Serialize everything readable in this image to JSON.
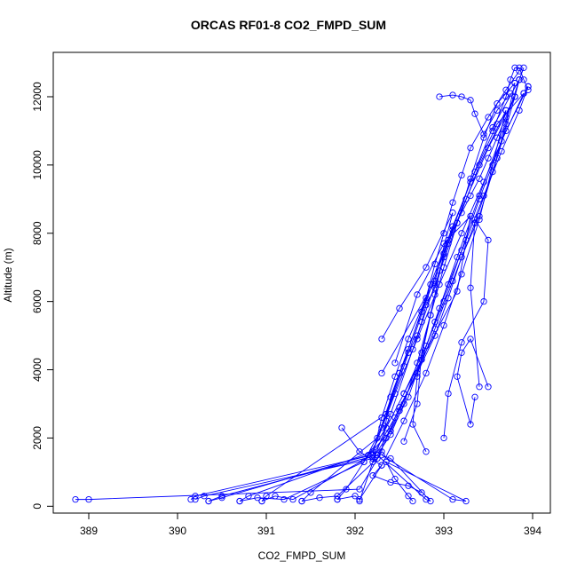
{
  "chart_data": {
    "type": "line",
    "title": "ORCAS RF01-8 CO2_FMPD_SUM",
    "xlabel": "CO2_FMPD_SUM",
    "ylabel": "Altitude (m)",
    "xlim": [
      388.6,
      394.2
    ],
    "ylim": [
      -200,
      13300
    ],
    "xticks": [
      389,
      390,
      391,
      392,
      393,
      394
    ],
    "yticks": [
      0,
      2000,
      4000,
      6000,
      8000,
      10000,
      12000
    ],
    "grid": false,
    "marker": "open-circle",
    "color": "#0000ff",
    "series": [
      {
        "x": [
          388.85,
          389.0,
          392.05,
          392.3,
          392.35,
          392.4,
          392.5,
          392.6,
          392.7,
          392.75,
          392.8,
          392.9,
          392.95,
          393.0,
          393.05,
          393.1,
          393.2,
          393.3,
          393.4,
          393.5,
          393.6,
          393.7,
          393.8,
          393.85,
          393.9
        ],
        "y": [
          200,
          200,
          500,
          1600,
          2500,
          3200,
          3900,
          4500,
          5000,
          5400,
          5900,
          6400,
          6900,
          7300,
          7700,
          8100,
          8600,
          9100,
          9600,
          10200,
          10800,
          11400,
          12000,
          12500,
          12850
        ]
      },
      {
        "x": [
          393.85,
          393.7,
          393.5,
          393.3,
          393.2,
          393.1,
          393.0,
          392.9,
          392.8,
          392.6,
          392.45,
          392.3,
          392.2,
          390.2,
          390.15
        ],
        "y": [
          12750,
          12200,
          11400,
          10500,
          9700,
          8900,
          8000,
          7100,
          6100,
          4900,
          3800,
          2600,
          1500,
          300,
          200
        ]
      },
      {
        "x": [
          390.2,
          390.3,
          392.2,
          392.35,
          392.5,
          392.7,
          392.9,
          393.05,
          393.2,
          393.4,
          393.55,
          393.7,
          393.8
        ],
        "y": [
          200,
          300,
          1400,
          2000,
          2900,
          3900,
          5000,
          6100,
          7300,
          8500,
          9800,
          11200,
          12400
        ]
      },
      {
        "x": [
          393.8,
          393.6,
          393.45,
          393.3,
          393.15,
          393.0,
          392.85,
          392.7,
          392.55,
          392.4,
          392.25,
          390.5,
          390.35
        ],
        "y": [
          12400,
          11800,
          10800,
          9600,
          8300,
          7000,
          5600,
          4200,
          3000,
          2100,
          1500,
          300,
          150
        ]
      },
      {
        "x": [
          390.35,
          390.5,
          392.15,
          392.4,
          392.6,
          392.75,
          392.9,
          393.05,
          393.25,
          393.45,
          393.65,
          393.85,
          393.95
        ],
        "y": [
          150,
          250,
          1500,
          2200,
          3200,
          4300,
          5400,
          6500,
          7800,
          9100,
          10400,
          11600,
          12300
        ]
      },
      {
        "x": [
          393.95,
          393.7,
          393.45,
          393.2,
          392.95,
          392.7,
          392.45,
          392.2,
          390.8,
          390.7
        ],
        "y": [
          12300,
          11000,
          9500,
          8000,
          6500,
          4900,
          3300,
          1600,
          300,
          150
        ]
      },
      {
        "x": [
          390.7,
          390.9,
          391.2,
          392.1,
          392.35,
          392.55,
          392.8,
          393.0,
          393.2,
          393.4,
          393.65,
          393.9
        ],
        "y": [
          150,
          250,
          200,
          1300,
          2300,
          3300,
          4700,
          6000,
          7500,
          9000,
          10700,
          12100
        ]
      },
      {
        "x": [
          393.9,
          393.6,
          393.35,
          393.1,
          392.85,
          392.6,
          392.35,
          391.0,
          390.95
        ],
        "y": [
          12100,
          11200,
          9800,
          8200,
          6500,
          4600,
          2700,
          300,
          150
        ]
      },
      {
        "x": [
          390.95,
          391.1,
          391.3,
          392.2,
          392.45,
          392.7,
          392.9,
          393.1,
          393.35,
          393.6,
          393.8
        ],
        "y": [
          150,
          300,
          200,
          1500,
          2600,
          3900,
          5200,
          6600,
          8300,
          10200,
          12000
        ]
      },
      {
        "x": [
          393.8,
          393.5,
          393.25,
          393.0,
          392.75,
          392.5,
          392.25,
          391.5,
          391.4
        ],
        "y": [
          12000,
          10500,
          9000,
          7400,
          5700,
          3900,
          2000,
          400,
          150
        ]
      },
      {
        "x": [
          391.4,
          391.6,
          391.8,
          392.25,
          392.5,
          392.75,
          392.95,
          393.15,
          393.4,
          393.65,
          393.85
        ],
        "y": [
          150,
          250,
          300,
          1400,
          2800,
          4300,
          5800,
          7300,
          9100,
          10900,
          12500
        ]
      },
      {
        "x": [
          393.85,
          393.55,
          393.3,
          393.05,
          392.8,
          392.55,
          392.3,
          392.1,
          391.9,
          391.8
        ],
        "y": [
          12500,
          11100,
          9500,
          7800,
          6000,
          4100,
          2300,
          1300,
          500,
          200
        ]
      },
      {
        "x": [
          391.8,
          392.0,
          392.05,
          392.3,
          392.55,
          392.8,
          393.0,
          393.2,
          393.4,
          393.55,
          393.7
        ],
        "y": [
          200,
          300,
          200,
          1200,
          2500,
          3900,
          5300,
          6800,
          8400,
          10000,
          11600
        ]
      },
      {
        "x": [
          393.7,
          393.4,
          393.15,
          392.9,
          392.65,
          392.4,
          392.2,
          392.05
        ],
        "y": [
          11600,
          10000,
          8300,
          6500,
          4600,
          2700,
          1300,
          150
        ]
      },
      {
        "x": [
          392.25,
          392.8,
          392.85,
          392.4,
          392.3,
          393.1,
          393.25,
          392.35,
          392.45,
          392.6,
          392.65
        ],
        "y": [
          1500,
          200,
          150,
          1400,
          1500,
          200,
          150,
          1300,
          800,
          300,
          150
        ]
      },
      {
        "x": [
          392.55,
          392.7,
          392.75,
          392.9,
          393.0,
          392.85,
          392.7,
          392.65,
          392.8
        ],
        "y": [
          1900,
          3000,
          4500,
          6200,
          7400,
          5600,
          3800,
          2400,
          1600
        ]
      },
      {
        "x": [
          393.0,
          393.05,
          393.2,
          393.45,
          393.5,
          393.35,
          393.3,
          393.4
        ],
        "y": [
          2000,
          3300,
          4800,
          6000,
          7800,
          8400,
          6400,
          3500
        ]
      },
      {
        "x": [
          393.35,
          393.3,
          393.15,
          393.2,
          393.3,
          393.5
        ],
        "y": [
          3200,
          2400,
          3800,
          4500,
          4900,
          3500
        ]
      },
      {
        "x": [
          392.3,
          392.9,
          393.1,
          392.8,
          392.5,
          392.3
        ],
        "y": [
          3900,
          6600,
          8600,
          7000,
          5800,
          4900
        ]
      },
      {
        "x": [
          392.55,
          393.15,
          393.3,
          393.0,
          392.7,
          392.45
        ],
        "y": [
          3300,
          6300,
          8500,
          7700,
          6200,
          4200
        ]
      },
      {
        "x": [
          392.95,
          393.1,
          393.2,
          393.3,
          393.35,
          393.45,
          393.6,
          393.75
        ],
        "y": [
          12000,
          12050,
          12000,
          11900,
          11500,
          10900,
          11600,
          12100
        ]
      },
      {
        "x": [
          393.55,
          393.7,
          393.75,
          393.8,
          393.85,
          393.9,
          393.95
        ],
        "y": [
          11000,
          12000,
          12500,
          12850,
          12850,
          12500,
          12200
        ]
      },
      {
        "x": [
          391.85,
          392.05,
          392.3,
          392.2,
          392.4,
          392.6,
          392.75
        ],
        "y": [
          2300,
          1600,
          1200,
          900,
          700,
          600,
          400
        ]
      }
    ]
  }
}
